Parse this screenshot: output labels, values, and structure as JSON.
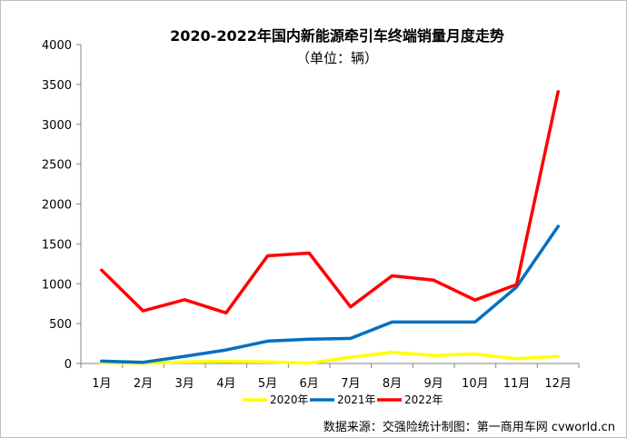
{
  "chart_data": {
    "type": "line",
    "title": "2020-2022年国内新能源牵引车终端销量月度走势",
    "subtitle": "（单位：辆）",
    "categories": [
      "1月",
      "2月",
      "3月",
      "4月",
      "5月",
      "6月",
      "7月",
      "8月",
      "9月",
      "10月",
      "11月",
      "12月"
    ],
    "ylim": [
      0,
      4000
    ],
    "yticks": [
      0,
      500,
      1000,
      1500,
      2000,
      2500,
      3000,
      3500,
      4000
    ],
    "grid": false,
    "legend_position": "bottom",
    "series": [
      {
        "name": "2020年",
        "color": "#ffff00",
        "values": [
          10,
          5,
          20,
          25,
          20,
          5,
          80,
          140,
          100,
          120,
          60,
          90
        ]
      },
      {
        "name": "2021年",
        "color": "#0070c0",
        "values": [
          30,
          15,
          90,
          170,
          280,
          305,
          315,
          520,
          520,
          520,
          960,
          1720
        ]
      },
      {
        "name": "2022年",
        "color": "#ff0000",
        "values": [
          1170,
          660,
          800,
          635,
          1350,
          1385,
          710,
          1100,
          1045,
          795,
          990,
          3410
        ]
      }
    ]
  },
  "source": "数据来源：交强险统计制图：第一商用车网 cvworld.cn"
}
